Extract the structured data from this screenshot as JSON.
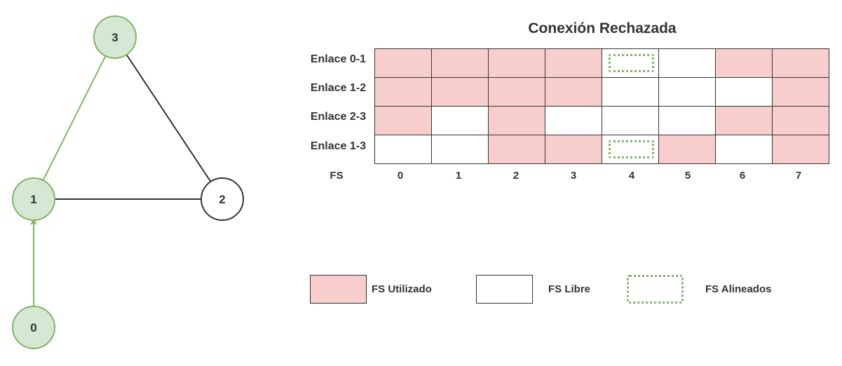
{
  "graph": {
    "nodes": [
      {
        "id": "0",
        "label": "0",
        "highlighted": true
      },
      {
        "id": "1",
        "label": "1",
        "highlighted": true
      },
      {
        "id": "2",
        "label": "2",
        "highlighted": false
      },
      {
        "id": "3",
        "label": "3",
        "highlighted": true
      }
    ],
    "edges": [
      {
        "from": "0",
        "to": "1",
        "highlighted": true,
        "directed": true
      },
      {
        "from": "1",
        "to": "3",
        "highlighted": true,
        "directed": false
      },
      {
        "from": "1",
        "to": "2",
        "highlighted": false,
        "directed": false
      },
      {
        "from": "2",
        "to": "3",
        "highlighted": false,
        "directed": false
      }
    ]
  },
  "table": {
    "title": "Conexión Rechazada",
    "rows": [
      {
        "label": "Enlace 0-1",
        "cells": [
          "used",
          "used",
          "used",
          "used",
          "aligned",
          "free",
          "used",
          "used"
        ]
      },
      {
        "label": "Enlace 1-2",
        "cells": [
          "used",
          "used",
          "used",
          "used",
          "free",
          "free",
          "free",
          "used"
        ]
      },
      {
        "label": "Enlace 2-3",
        "cells": [
          "used",
          "free",
          "used",
          "free",
          "free",
          "free",
          "used",
          "used"
        ]
      },
      {
        "label": "Enlace 1-3",
        "cells": [
          "free",
          "free",
          "used",
          "used",
          "aligned",
          "used",
          "free",
          "used"
        ]
      }
    ],
    "fs_header": "FS",
    "fs_labels": [
      "0",
      "1",
      "2",
      "3",
      "4",
      "5",
      "6",
      "7"
    ]
  },
  "legend": {
    "used_label": "FS Utilizado",
    "free_label": "FS Libre",
    "aligned_label": "FS Alineados"
  },
  "colors": {
    "used_fill": "#f8cecc",
    "highlight_fill": "#d5e8d4",
    "highlight_stroke": "#82b366",
    "default_stroke": "#333333"
  }
}
